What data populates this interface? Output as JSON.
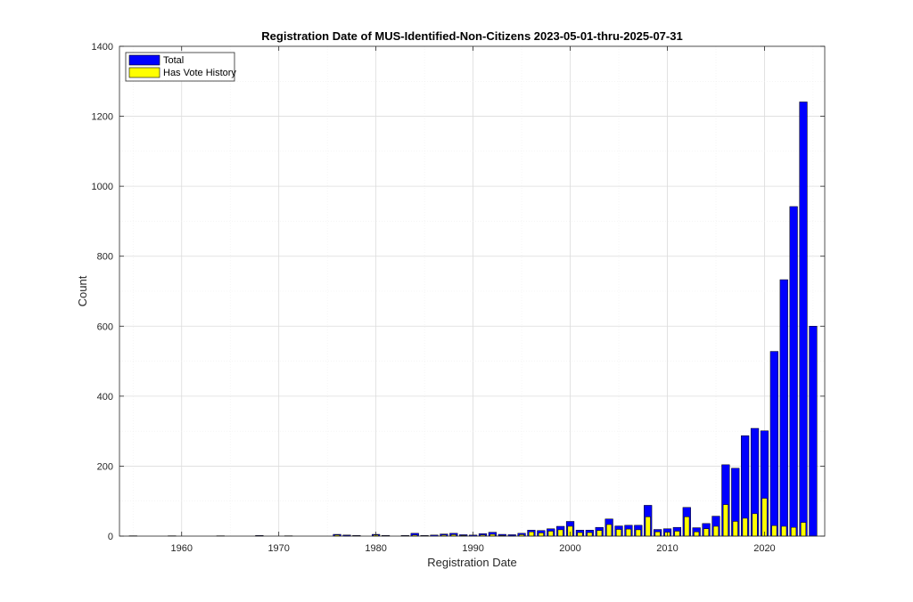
{
  "colors": {
    "total": "#0000ff",
    "vote": "#ffff00",
    "edge": "#000000",
    "grid": "#e6e6e6",
    "axis": "#262626"
  },
  "chart_data": {
    "type": "bar",
    "title": "Registration Date of MUS-Identified-Non-Citizens 2023-05-01-thru-2025-07-31",
    "xlabel": "Registration Date",
    "ylabel": "Count",
    "xlim": [
      1953.6,
      2026.2
    ],
    "ylim": [
      0,
      1400
    ],
    "xticks": [
      1960,
      1970,
      1980,
      1990,
      2000,
      2010,
      2020
    ],
    "yticks": [
      0,
      200,
      400,
      600,
      800,
      1000,
      1200,
      1400
    ],
    "grid": true,
    "legend_location": "top-left",
    "x": [
      1955,
      1959,
      1964,
      1968,
      1971,
      1976,
      1977,
      1978,
      1980,
      1981,
      1983,
      1984,
      1985,
      1986,
      1987,
      1988,
      1989,
      1990,
      1991,
      1992,
      1993,
      1994,
      1995,
      1996,
      1997,
      1998,
      1999,
      2000,
      2001,
      2002,
      2003,
      2004,
      2005,
      2006,
      2007,
      2008,
      2009,
      2010,
      2011,
      2012,
      2013,
      2014,
      2015,
      2016,
      2017,
      2018,
      2019,
      2020,
      2021,
      2022,
      2023,
      2024,
      2025
    ],
    "series": [
      {
        "name": "Total",
        "values": [
          1,
          1,
          1,
          2,
          1,
          5,
          3,
          2,
          5,
          2,
          2,
          8,
          2,
          3,
          6,
          8,
          4,
          3,
          7,
          11,
          5,
          4,
          8,
          17,
          16,
          21,
          28,
          42,
          17,
          17,
          25,
          49,
          29,
          31,
          31,
          88,
          19,
          21,
          25,
          82,
          24,
          36,
          57,
          204,
          194,
          287,
          308,
          301,
          528,
          733,
          942,
          1241,
          600
        ]
      },
      {
        "name": "Has Vote History",
        "values": [
          0,
          0,
          0,
          0,
          0,
          3,
          1,
          0,
          3,
          0,
          0,
          3,
          0,
          0,
          3,
          4,
          2,
          0,
          3,
          5,
          2,
          1,
          4,
          12,
          9,
          14,
          18,
          28,
          10,
          10,
          16,
          33,
          19,
          20,
          18,
          55,
          12,
          11,
          14,
          55,
          12,
          21,
          28,
          90,
          42,
          51,
          64,
          108,
          30,
          28,
          25,
          39,
          0
        ]
      }
    ]
  }
}
